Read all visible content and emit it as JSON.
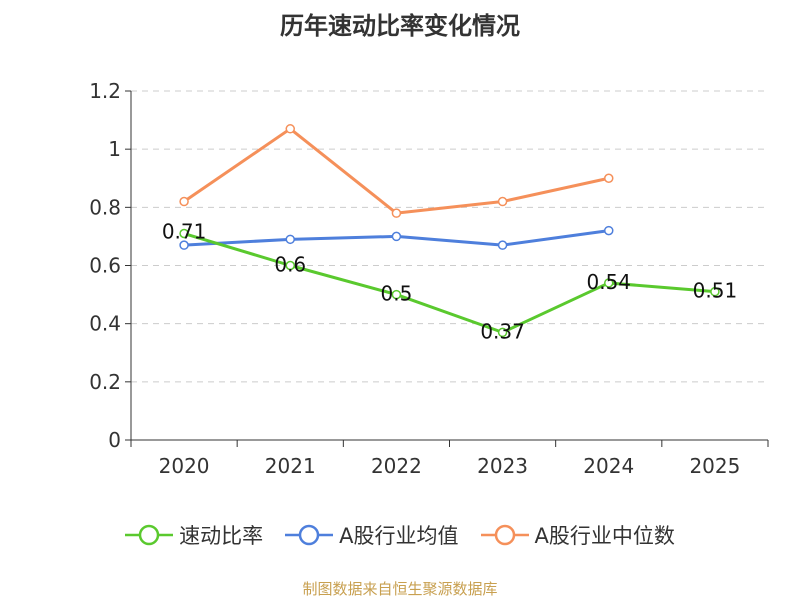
{
  "chart_data": {
    "type": "line",
    "title": "历年速动比率变化情况",
    "categories": [
      "2020",
      "2021",
      "2022",
      "2023",
      "2024",
      "2025"
    ],
    "y_ticks": [
      "0",
      "0.2",
      "0.4",
      "0.6",
      "0.8",
      "1",
      "1.2"
    ],
    "ylim": [
      0,
      1.2
    ],
    "xlabel": "",
    "ylabel": "",
    "grid": true,
    "legend_position": "bottom",
    "series": [
      {
        "name": "速动比率",
        "color": "#5ac92e",
        "values": [
          0.71,
          0.6,
          0.5,
          0.37,
          0.54,
          0.51
        ],
        "labels": [
          "0.71",
          "0.6",
          "0.5",
          "0.37",
          "0.54",
          "0.51"
        ],
        "show_labels": true
      },
      {
        "name": "A股行业均值",
        "color": "#4e7fdc",
        "values": [
          0.67,
          0.69,
          0.7,
          0.67,
          0.72,
          null
        ],
        "show_labels": false
      },
      {
        "name": "A股行业中位数",
        "color": "#f5905a",
        "values": [
          0.82,
          1.07,
          0.78,
          0.82,
          0.9,
          null
        ],
        "show_labels": false
      }
    ]
  },
  "source_text": "制图数据来自恒生聚源数据库"
}
